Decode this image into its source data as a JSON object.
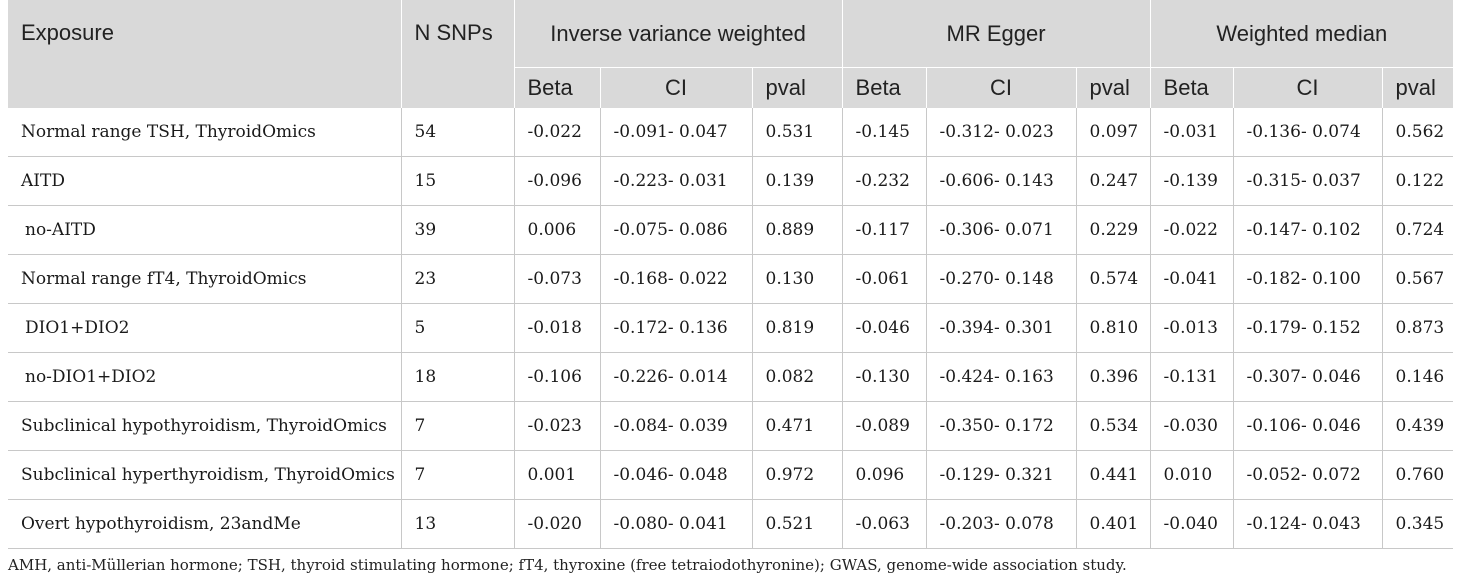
{
  "table": {
    "headers": {
      "exposure": "Exposure",
      "n_snps": "N SNPs",
      "groups": [
        "Inverse variance weighted",
        "MR Egger",
        "Weighted median"
      ],
      "sub": [
        "Beta",
        "CI",
        "pval"
      ]
    },
    "rows": [
      {
        "exposure": "Normal range TSH, ThyroidOmics",
        "n": "54",
        "ivw_beta": "-0.022",
        "ivw_ci": "-0.091- 0.047",
        "ivw_p": "0.531",
        "egger_beta": "-0.145",
        "egger_ci": "-0.312- 0.023",
        "egger_p": "0.097",
        "wm_beta": "-0.031",
        "wm_ci": "-0.136- 0.074",
        "wm_p": "0.562",
        "indent": false
      },
      {
        "exposure": "AITD",
        "n": "15",
        "ivw_beta": "-0.096",
        "ivw_ci": "-0.223- 0.031",
        "ivw_p": "0.139",
        "egger_beta": "-0.232",
        "egger_ci": "-0.606- 0.143",
        "egger_p": "0.247",
        "wm_beta": "-0.139",
        "wm_ci": "-0.315- 0.037",
        "wm_p": "0.122",
        "indent": false
      },
      {
        "exposure": "no-AITD",
        "n": "39",
        "ivw_beta": "0.006",
        "ivw_ci": "-0.075- 0.086",
        "ivw_p": "0.889",
        "egger_beta": "-0.117",
        "egger_ci": "-0.306- 0.071",
        "egger_p": "0.229",
        "wm_beta": "-0.022",
        "wm_ci": "-0.147- 0.102",
        "wm_p": "0.724",
        "indent": true
      },
      {
        "exposure": "Normal range fT4, ThyroidOmics",
        "n": "23",
        "ivw_beta": "-0.073",
        "ivw_ci": "-0.168- 0.022",
        "ivw_p": "0.130",
        "egger_beta": "-0.061",
        "egger_ci": "-0.270- 0.148",
        "egger_p": "0.574",
        "wm_beta": "-0.041",
        "wm_ci": "-0.182- 0.100",
        "wm_p": "0.567",
        "indent": false
      },
      {
        "exposure": "DIO1+DIO2",
        "n": "5",
        "ivw_beta": "-0.018",
        "ivw_ci": "-0.172- 0.136",
        "ivw_p": "0.819",
        "egger_beta": "-0.046",
        "egger_ci": "-0.394- 0.301",
        "egger_p": "0.810",
        "wm_beta": "-0.013",
        "wm_ci": "-0.179- 0.152",
        "wm_p": "0.873",
        "indent": true
      },
      {
        "exposure": "no-DIO1+DIO2",
        "n": "18",
        "ivw_beta": "-0.106",
        "ivw_ci": "-0.226- 0.014",
        "ivw_p": "0.082",
        "egger_beta": "-0.130",
        "egger_ci": "-0.424- 0.163",
        "egger_p": "0.396",
        "wm_beta": "-0.131",
        "wm_ci": "-0.307- 0.046",
        "wm_p": "0.146",
        "indent": true
      },
      {
        "exposure": "Subclinical hypothyroidism, ThyroidOmics",
        "n": "7",
        "ivw_beta": "-0.023",
        "ivw_ci": "-0.084- 0.039",
        "ivw_p": "0.471",
        "egger_beta": "-0.089",
        "egger_ci": "-0.350- 0.172",
        "egger_p": "0.534",
        "wm_beta": "-0.030",
        "wm_ci": "-0.106- 0.046",
        "wm_p": "0.439",
        "indent": false
      },
      {
        "exposure": "Subclinical hyperthyroidism, ThyroidOmics",
        "n": "7",
        "ivw_beta": "0.001",
        "ivw_ci": "-0.046- 0.048",
        "ivw_p": "0.972",
        "egger_beta": "0.096",
        "egger_ci": "-0.129- 0.321",
        "egger_p": "0.441",
        "wm_beta": "0.010",
        "wm_ci": "-0.052- 0.072",
        "wm_p": "0.760",
        "indent": false
      },
      {
        "exposure": "Overt hypothyroidism, 23andMe",
        "n": "13",
        "ivw_beta": "-0.020",
        "ivw_ci": "-0.080- 0.041",
        "ivw_p": "0.521",
        "egger_beta": "-0.063",
        "egger_ci": "-0.203- 0.078",
        "egger_p": "0.401",
        "wm_beta": "-0.040",
        "wm_ci": "-0.124- 0.043",
        "wm_p": "0.345",
        "indent": false
      }
    ]
  },
  "footnote": "AMH, anti-Müllerian hormone; TSH, thyroid stimulating hormone; fT4, thyroxine (free tetraiodothyronine); GWAS, genome-wide association study."
}
